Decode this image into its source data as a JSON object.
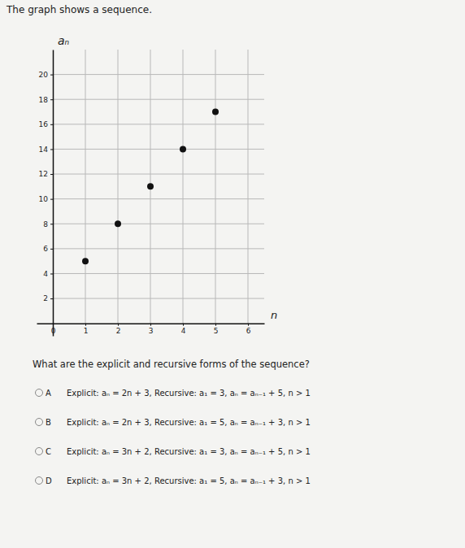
{
  "prompt": "The graph shows a sequence.",
  "chart_data": {
    "type": "scatter",
    "x_label": "n",
    "y_label": "aₙ",
    "x": [
      1,
      2,
      3,
      4,
      5
    ],
    "values": [
      5,
      8,
      11,
      14,
      17
    ],
    "color": "#111111",
    "marker": "circle",
    "xlim": [
      -0.5,
      6.5
    ],
    "xticks": [
      0,
      1,
      2,
      3,
      4,
      5,
      6
    ],
    "ylim": [
      -1,
      22
    ],
    "yticks": [
      2,
      4,
      6,
      8,
      10,
      12,
      14,
      16,
      18,
      20
    ],
    "grid": true
  },
  "question": "What are the explicit and recursive forms of the sequence?",
  "choices": [
    {
      "letter": "A",
      "text": "Explicit: aₙ = 2n + 3, Recursive: a₁ = 3, aₙ = aₙ₋₁ + 5, n > 1"
    },
    {
      "letter": "B",
      "text": "Explicit: aₙ = 2n + 3, Recursive: a₁ = 5, aₙ = aₙ₋₁ + 3, n > 1"
    },
    {
      "letter": "C",
      "text": "Explicit: aₙ = 3n + 2, Recursive: a₁ = 3, aₙ = aₙ₋₁ + 5, n > 1"
    },
    {
      "letter": "D",
      "text": "Explicit: aₙ = 3n + 2, Recursive: a₁ = 5, aₙ = aₙ₋₁ + 3, n > 1"
    }
  ]
}
